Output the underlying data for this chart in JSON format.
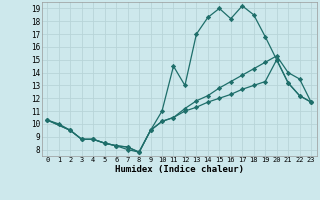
{
  "xlabel": "Humidex (Indice chaleur)",
  "xlim": [
    -0.5,
    23.5
  ],
  "ylim": [
    7.5,
    19.5
  ],
  "yticks": [
    8,
    9,
    10,
    11,
    12,
    13,
    14,
    15,
    16,
    17,
    18,
    19
  ],
  "xticks": [
    0,
    1,
    2,
    3,
    4,
    5,
    6,
    7,
    8,
    9,
    10,
    11,
    12,
    13,
    14,
    15,
    16,
    17,
    18,
    19,
    20,
    21,
    22,
    23
  ],
  "background_color": "#cde8ec",
  "grid_color": "#b8d4d8",
  "line_color": "#1e6e6a",
  "series": [
    {
      "x": [
        0,
        1,
        2,
        3,
        4,
        5,
        6,
        7,
        8,
        9,
        10,
        11,
        12,
        13,
        14,
        15,
        16,
        17,
        18,
        19,
        20,
        21,
        22,
        23
      ],
      "y": [
        10.3,
        10.0,
        9.5,
        8.8,
        8.8,
        8.5,
        8.3,
        8.0,
        7.8,
        9.5,
        11.0,
        14.5,
        13.0,
        17.0,
        18.3,
        19.0,
        18.2,
        19.2,
        18.5,
        16.8,
        15.0,
        13.2,
        12.2,
        11.7
      ]
    },
    {
      "x": [
        0,
        2,
        3,
        4,
        5,
        6,
        7,
        8,
        9,
        10,
        11,
        12,
        13,
        14,
        15,
        16,
        17,
        18,
        19,
        20,
        21,
        22,
        23
      ],
      "y": [
        10.3,
        9.5,
        8.8,
        8.8,
        8.5,
        8.3,
        8.2,
        7.8,
        9.5,
        10.2,
        10.5,
        11.0,
        11.3,
        11.7,
        12.0,
        12.3,
        12.7,
        13.0,
        13.3,
        15.0,
        13.2,
        12.2,
        11.7
      ]
    },
    {
      "x": [
        0,
        2,
        3,
        4,
        5,
        6,
        7,
        8,
        9,
        10,
        11,
        12,
        13,
        14,
        15,
        16,
        17,
        18,
        19,
        20,
        21,
        22,
        23
      ],
      "y": [
        10.3,
        9.5,
        8.8,
        8.8,
        8.5,
        8.3,
        8.2,
        7.8,
        9.5,
        10.2,
        10.5,
        11.2,
        11.8,
        12.2,
        12.8,
        13.3,
        13.8,
        14.3,
        14.8,
        15.3,
        14.0,
        13.5,
        11.7
      ]
    }
  ]
}
